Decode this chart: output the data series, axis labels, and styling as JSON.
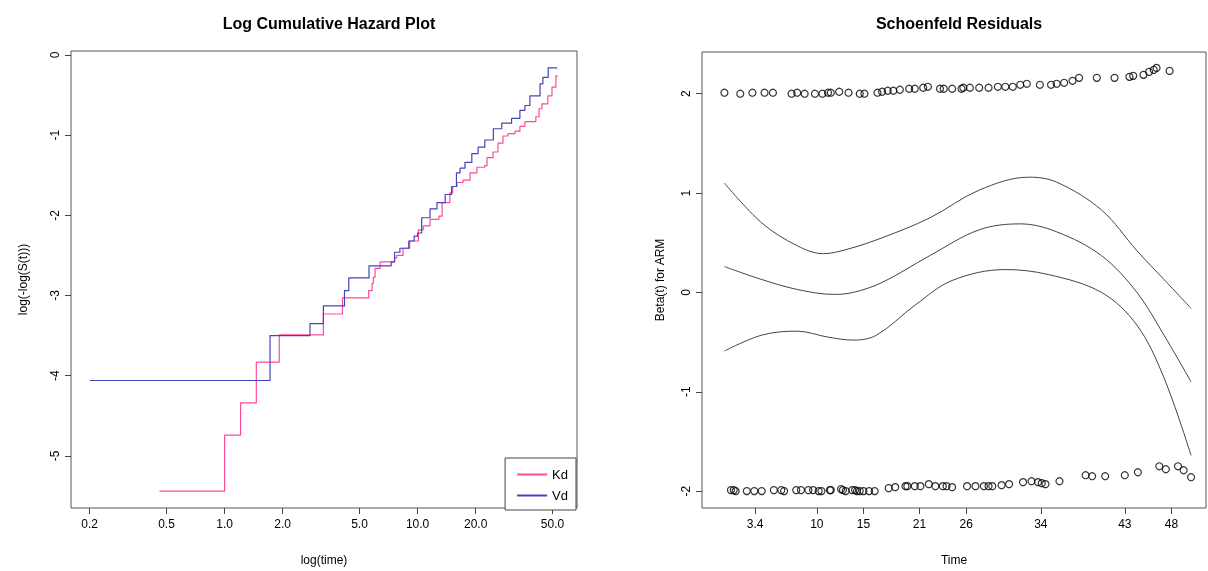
{
  "chart_data": [
    {
      "type": "step",
      "title": "Log Cumulative Hazard Plot",
      "xlabel": "log(time)",
      "ylabel": "log(-log(S(t)))",
      "log": "x",
      "xlim": [
        0.16,
        67
      ],
      "xticks": [
        0.2,
        0.5,
        {
          "value": 1,
          "label": "1.0"
        },
        {
          "value": 2,
          "label": "2.0"
        },
        {
          "value": 5,
          "label": "5.0"
        },
        {
          "value": 10,
          "label": "10.0"
        },
        {
          "value": 20,
          "label": "20.0"
        },
        {
          "value": 50,
          "label": "50.0"
        }
      ],
      "ylim": [
        -5.65,
        0.05
      ],
      "yticks": [
        -5,
        -4,
        -3,
        -2,
        -1,
        0
      ],
      "legend": "bottom right",
      "series": [
        {
          "name": "Kd",
          "color": "#ff4a9a",
          "x": [
            0.46,
            1.0,
            1.21,
            1.46,
            1.92,
            3.25,
            4.08,
            5.58,
            5.81,
            5.9,
            6.02,
            6.4,
            7.6,
            7.8,
            8.4,
            9.1,
            10.1,
            10.7,
            11.6,
            12.9,
            13.4,
            14.7,
            15.2,
            16.0,
            17.2,
            18.7,
            20.3,
            22.3,
            22.9,
            24.6,
            26.1,
            27.7,
            29.4,
            32.0,
            33.9,
            36.0,
            41.0,
            42.6,
            44.1,
            47.3,
            49.7,
            52.1,
            53.3
          ],
          "values": [
            -5.44,
            -4.74,
            -4.34,
            -3.83,
            -3.49,
            -3.23,
            -3.03,
            -2.94,
            -2.85,
            -2.77,
            -2.66,
            -2.58,
            -2.53,
            -2.5,
            -2.41,
            -2.32,
            -2.18,
            -2.13,
            -2.05,
            -2.01,
            -1.84,
            -1.72,
            -1.64,
            -1.59,
            -1.56,
            -1.47,
            -1.4,
            -1.38,
            -1.28,
            -1.21,
            -1.1,
            -1.01,
            -0.98,
            -0.95,
            -0.89,
            -0.83,
            -0.77,
            -0.67,
            -0.61,
            -0.51,
            -0.4,
            -0.26,
            -0.26
          ]
        },
        {
          "name": "Vd",
          "color": "#4444b8",
          "x": [
            0.2,
            1.72,
            2.77,
            3.25,
            4.18,
            4.4,
            5.6,
            7.3,
            7.6,
            8.1,
            9.0,
            9.6,
            10.0,
            10.5,
            11.6,
            12.6,
            13.9,
            15.0,
            15.9,
            16.6,
            17.6,
            19.1,
            20.6,
            22.3,
            24.7,
            27.3,
            30.7,
            33.9,
            36.0,
            38.2,
            43.1,
            44.6,
            47.5,
            52.9
          ],
          "values": [
            -4.06,
            -3.5,
            -3.35,
            -3.13,
            -2.94,
            -2.78,
            -2.63,
            -2.58,
            -2.46,
            -2.41,
            -2.32,
            -2.26,
            -2.22,
            -2.03,
            -1.92,
            -1.84,
            -1.74,
            -1.64,
            -1.47,
            -1.41,
            -1.34,
            -1.23,
            -1.15,
            -1.06,
            -0.92,
            -0.85,
            -0.79,
            -0.69,
            -0.63,
            -0.51,
            -0.36,
            -0.28,
            -0.16,
            -0.16
          ]
        }
      ]
    },
    {
      "type": "scatter",
      "title": "Schoenfeld Residuals",
      "xlabel": "Time",
      "ylabel": "Beta(t) for ARM",
      "xlim": [
        -2.3,
        51.7
      ],
      "xticks": [
        3.4,
        10,
        15,
        21,
        26,
        34,
        43,
        48
      ],
      "ylim": [
        -2.17,
        2.42
      ],
      "yticks": [
        -2,
        -1,
        0,
        1,
        2
      ],
      "series": [
        {
          "color": "#000000",
          "marker": "circle",
          "x": [
            0.1,
            1.8,
            3.1,
            4.4,
            5.3,
            7.3,
            7.9,
            8.7,
            9.8,
            10.6,
            11.2,
            11.5,
            12.4,
            13.4,
            14.6,
            15.1,
            16.5,
            17.0,
            17.6,
            18.2,
            18.9,
            19.9,
            20.5,
            21.4,
            21.9,
            23.2,
            23.6,
            24.5,
            25.5,
            25.7,
            26.4,
            27.4,
            28.4,
            29.4,
            30.2,
            31.0,
            31.8,
            32.5,
            33.9,
            35.1,
            35.7,
            36.5,
            37.4,
            38.1,
            40.0,
            41.9,
            43.5,
            43.9,
            45.0,
            45.6,
            46.1,
            46.4,
            47.8,
            0.8,
            1.1,
            1.3,
            2.5,
            3.3,
            4.1,
            5.4,
            6.2,
            6.5,
            7.8,
            8.3,
            9.1,
            9.6,
            10.2,
            10.5,
            11.4,
            11.5,
            12.6,
            12.8,
            13.1,
            13.8,
            14.1,
            14.3,
            14.6,
            15.0,
            15.6,
            16.2,
            17.7,
            18.4,
            19.5,
            19.7,
            20.5,
            21.1,
            22.0,
            22.7,
            23.5,
            23.9,
            24.5,
            26.1,
            27.0,
            27.9,
            28.4,
            28.8,
            29.8,
            30.6,
            32.1,
            33.0,
            33.7,
            34.1,
            34.5,
            36.0,
            38.8,
            39.5,
            40.9,
            43.0,
            44.4,
            46.7,
            47.4,
            48.7,
            49.3,
            50.1
          ],
          "values": [
            2.01,
            2.0,
            2.01,
            2.01,
            2.01,
            2.0,
            2.01,
            2.0,
            2.0,
            2.0,
            2.01,
            2.01,
            2.02,
            2.01,
            2.0,
            2.0,
            2.01,
            2.02,
            2.03,
            2.03,
            2.04,
            2.05,
            2.05,
            2.06,
            2.07,
            2.05,
            2.05,
            2.05,
            2.05,
            2.06,
            2.06,
            2.06,
            2.06,
            2.07,
            2.07,
            2.07,
            2.09,
            2.1,
            2.09,
            2.09,
            2.1,
            2.11,
            2.13,
            2.16,
            2.16,
            2.16,
            2.17,
            2.18,
            2.19,
            2.22,
            2.24,
            2.26,
            2.23,
            -1.99,
            -1.99,
            -2.0,
            -2.0,
            -2.0,
            -2.0,
            -1.99,
            -1.99,
            -2.0,
            -1.99,
            -1.99,
            -1.99,
            -1.99,
            -2.0,
            -2.0,
            -1.99,
            -1.99,
            -1.98,
            -1.99,
            -2.0,
            -1.99,
            -1.99,
            -2.0,
            -2.0,
            -2.0,
            -2.0,
            -2.0,
            -1.97,
            -1.96,
            -1.95,
            -1.95,
            -1.95,
            -1.95,
            -1.93,
            -1.95,
            -1.95,
            -1.95,
            -1.96,
            -1.95,
            -1.95,
            -1.95,
            -1.95,
            -1.95,
            -1.94,
            -1.93,
            -1.91,
            -1.9,
            -1.91,
            -1.92,
            -1.93,
            -1.9,
            -1.84,
            -1.85,
            -1.85,
            -1.84,
            -1.81,
            -1.75,
            -1.78,
            -1.75,
            -1.79,
            -1.86
          ]
        },
        {
          "type": "line",
          "color": "#444444",
          "x": [
            0.1,
            4.1,
            7.9,
            10.7,
            13.1,
            17.0,
            22.1,
            27.4,
            32.7,
            35.7,
            40.5,
            44.3,
            47.2,
            50.1
          ],
          "values": [
            1.1,
            0.7,
            0.47,
            0.39,
            0.43,
            0.55,
            0.75,
            1.03,
            1.16,
            1.11,
            0.83,
            0.42,
            0.13,
            -0.16
          ]
        },
        {
          "type": "line",
          "color": "#444444",
          "x": [
            0.1,
            4.1,
            7.9,
            11.8,
            13.9,
            17.0,
            22.1,
            27.4,
            31.8,
            35.7,
            40.5,
            44.3,
            47.2,
            50.1
          ],
          "values": [
            0.26,
            0.13,
            0.03,
            -0.02,
            0.0,
            0.1,
            0.37,
            0.63,
            0.69,
            0.61,
            0.37,
            0.0,
            -0.43,
            -0.9
          ]
        },
        {
          "type": "line",
          "color": "#444444",
          "x": [
            0.1,
            4.1,
            7.9,
            11.2,
            13.9,
            16.4,
            20.5,
            24.5,
            30.2,
            34.8,
            40.5,
            44.3,
            47.2,
            50.1
          ],
          "values": [
            -0.59,
            -0.43,
            -0.39,
            -0.45,
            -0.48,
            -0.43,
            -0.13,
            0.12,
            0.23,
            0.18,
            0.0,
            -0.33,
            -0.86,
            -1.64
          ]
        }
      ]
    }
  ]
}
